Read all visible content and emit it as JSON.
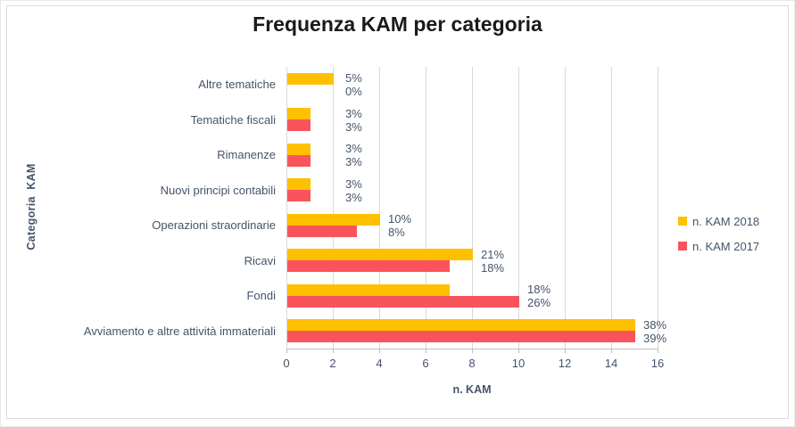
{
  "chart_data": {
    "type": "bar",
    "orientation": "horizontal",
    "title": "Frequenza KAM per categoria",
    "xlabel": "n. KAM",
    "ylabel": "Categoria  KAM",
    "xlim": [
      0,
      16
    ],
    "xticks": [
      0,
      2,
      4,
      6,
      8,
      10,
      12,
      14,
      16
    ],
    "grid": true,
    "legend_position": "right-middle",
    "categories": [
      "Altre tematiche",
      "Tematiche fiscali",
      "Rimanenze",
      "Nuovi principi contabili",
      "Operazioni straordinarie",
      "Ricavi",
      "Fondi",
      "Avviamento e altre attività immateriali"
    ],
    "series": [
      {
        "name": "n. KAM 2018",
        "color": "#FFC000",
        "values": [
          2,
          1,
          1,
          1,
          4,
          8,
          7,
          15
        ],
        "percent_labels": [
          "5%",
          "3%",
          "3%",
          "3%",
          "10%",
          "21%",
          "18%",
          "38%"
        ]
      },
      {
        "name": "n. KAM 2017",
        "color": "#F9545C",
        "values": [
          0,
          1,
          1,
          1,
          3,
          7,
          10,
          15
        ],
        "percent_labels": [
          "0%",
          "3%",
          "3%",
          "3%",
          "8%",
          "18%",
          "26%",
          "39%"
        ]
      }
    ]
  },
  "colors": {
    "series_2018": "#FFC000",
    "series_2017": "#F9545C",
    "text": "#44546A",
    "title_text": "#1A1A1A",
    "gridline": "#D9D9D9",
    "axis_line": "#BFBFBF",
    "frame_border": "#DCDCDC",
    "background": "#FFFFFF"
  }
}
